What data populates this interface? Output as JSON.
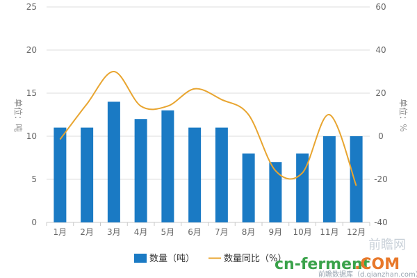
{
  "chart_data": {
    "type": "bar",
    "categories": [
      "1月",
      "2月",
      "3月",
      "4月",
      "5月",
      "6月",
      "7月",
      "8月",
      "9月",
      "10月",
      "11月",
      "12月"
    ],
    "series": [
      {
        "name": "数量（吨）",
        "type": "bar",
        "axis": "left",
        "color": "#1a7ac4",
        "values": [
          11,
          11,
          14,
          12,
          13,
          11,
          11,
          8,
          7,
          8,
          10,
          10
        ]
      },
      {
        "name": "数量同比（%）",
        "type": "line",
        "axis": "right",
        "color": "#e8a530",
        "values": [
          -1.5,
          15,
          30,
          14,
          14,
          22,
          17,
          10,
          -16,
          -17,
          10,
          -23
        ]
      }
    ],
    "ylabel_left": "单位：吨",
    "ylabel_right": "单位：%",
    "ylim_left": [
      0,
      25
    ],
    "yticks_left": [
      0,
      5,
      10,
      15,
      20,
      25
    ],
    "ylim_right": [
      -40,
      60
    ],
    "yticks_right": [
      -40,
      -20,
      0,
      20,
      40,
      60
    ],
    "grid": true,
    "legend_position": "bottom-center"
  },
  "watermark": {
    "brand": "cn-ferment",
    "brand_suffix": ".COM",
    "logo_text": "前瞻网",
    "subtext": "前瞻数据库（d.qianzhan.com）"
  },
  "colors": {
    "bar": "#1a7ac4",
    "line": "#e8a530",
    "grid": "#dcdcdc",
    "watermark_green": "#3aa24a",
    "watermark_orange": "#e8782a"
  }
}
